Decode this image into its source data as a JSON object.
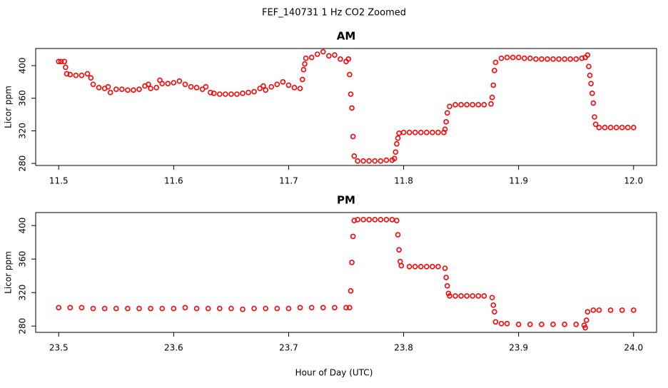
{
  "title": "FEF_140731  1 Hz CO2 Zoomed",
  "x_label": "Hour of Day (UTC)",
  "chart_data": [
    {
      "type": "scatter",
      "title": "AM",
      "y_label": "Licor ppm",
      "color": "#ff0000",
      "xlim": [
        11.48,
        12.02
      ],
      "xticks": [
        11.5,
        11.6,
        11.7,
        11.8,
        11.9,
        {
          "value": 12,
          "label": "12.0"
        }
      ],
      "ylim": [
        277.5,
        421
      ],
      "yticks": [
        280,
        320,
        360,
        400
      ],
      "x": [
        11.5,
        11.502,
        11.505,
        11.506,
        11.507,
        11.51,
        11.515,
        11.52,
        11.525,
        11.528,
        11.53,
        11.535,
        11.54,
        11.543,
        11.545,
        11.55,
        11.555,
        11.56,
        11.565,
        11.57,
        11.575,
        11.578,
        11.58,
        11.585,
        11.588,
        11.59,
        11.595,
        11.6,
        11.605,
        11.61,
        11.615,
        11.62,
        11.625,
        11.628,
        11.632,
        11.635,
        11.64,
        11.645,
        11.65,
        11.655,
        11.66,
        11.665,
        11.67,
        11.675,
        11.678,
        11.68,
        11.685,
        11.69,
        11.695,
        11.7,
        11.705,
        11.71,
        11.712,
        11.713,
        11.714,
        11.715,
        11.72,
        11.725,
        11.73,
        11.735,
        11.74,
        11.745,
        11.75,
        11.752,
        11.753,
        11.754,
        11.755,
        11.756,
        11.757,
        11.76,
        11.765,
        11.77,
        11.775,
        11.78,
        11.785,
        11.79,
        11.792,
        11.793,
        11.794,
        11.795,
        11.796,
        11.8,
        11.805,
        11.81,
        11.815,
        11.82,
        11.825,
        11.83,
        11.835,
        11.836,
        11.837,
        11.838,
        11.84,
        11.845,
        11.85,
        11.855,
        11.86,
        11.865,
        11.87,
        11.876,
        11.877,
        11.878,
        11.879,
        11.88,
        11.885,
        11.89,
        11.895,
        11.9,
        11.905,
        11.91,
        11.915,
        11.92,
        11.925,
        11.93,
        11.935,
        11.94,
        11.945,
        11.95,
        11.955,
        11.958,
        11.96,
        11.961,
        11.962,
        11.963,
        11.964,
        11.965,
        11.966,
        11.967,
        11.97,
        11.975,
        11.98,
        11.985,
        11.99,
        11.995,
        12.0
      ],
      "values": [
        405,
        405,
        405,
        398,
        390,
        389,
        388,
        388,
        390,
        385,
        377,
        373,
        372,
        374,
        367,
        371,
        371,
        370,
        370,
        371,
        375,
        377,
        372,
        373,
        382,
        378,
        378,
        379,
        381,
        377,
        374,
        373,
        371,
        374,
        367,
        366,
        365,
        365,
        365,
        365,
        366,
        367,
        368,
        372,
        375,
        370,
        374,
        377,
        380,
        376,
        373,
        372,
        383,
        395,
        402,
        409,
        410,
        414,
        417,
        412,
        413,
        408,
        405,
        408,
        389,
        365,
        348,
        313,
        289,
        283,
        283,
        283,
        283,
        283,
        284,
        284,
        286,
        294,
        304,
        311,
        317,
        318,
        318,
        318,
        318,
        318,
        318,
        318,
        318,
        322,
        331,
        342,
        350,
        352,
        352,
        352,
        352,
        352,
        352,
        353,
        361,
        376,
        394,
        404,
        409,
        410,
        410,
        410,
        409,
        409,
        408,
        408,
        408,
        408,
        408,
        408,
        408,
        408,
        409,
        410,
        413,
        399,
        388,
        378,
        366,
        354,
        337,
        328,
        324,
        324,
        324,
        324,
        324,
        324,
        324
      ]
    },
    {
      "type": "scatter",
      "title": "PM",
      "y_label": "Licor ppm",
      "color": "#ff0000",
      "xlim": [
        23.48,
        24.02
      ],
      "xticks": [
        23.5,
        23.6,
        23.7,
        23.8,
        23.9,
        {
          "value": 24,
          "label": "24.0"
        }
      ],
      "ylim": [
        272.5,
        415.5
      ],
      "yticks": [
        280,
        320,
        360,
        400
      ],
      "x": [
        23.5,
        23.51,
        23.52,
        23.53,
        23.54,
        23.55,
        23.56,
        23.57,
        23.58,
        23.59,
        23.6,
        23.61,
        23.62,
        23.63,
        23.64,
        23.65,
        23.66,
        23.67,
        23.68,
        23.69,
        23.7,
        23.71,
        23.72,
        23.73,
        23.74,
        23.75,
        23.753,
        23.754,
        23.755,
        23.756,
        23.757,
        23.76,
        23.765,
        23.77,
        23.775,
        23.78,
        23.785,
        23.79,
        23.794,
        23.795,
        23.796,
        23.797,
        23.798,
        23.805,
        23.81,
        23.815,
        23.82,
        23.825,
        23.83,
        23.836,
        23.837,
        23.838,
        23.839,
        23.84,
        23.845,
        23.85,
        23.855,
        23.86,
        23.865,
        23.87,
        23.877,
        23.878,
        23.879,
        23.88,
        23.885,
        23.89,
        23.9,
        23.91,
        23.92,
        23.93,
        23.94,
        23.95,
        23.957,
        23.958,
        23.959,
        23.96,
        23.965,
        23.97,
        23.98,
        23.99,
        24.0
      ],
      "values": [
        302,
        302,
        302,
        301,
        301,
        301,
        301,
        301,
        301,
        301,
        301,
        302,
        301,
        301,
        301,
        301,
        300,
        301,
        301,
        301,
        301,
        302,
        302,
        302,
        302,
        302,
        302,
        322,
        356,
        387,
        406,
        407,
        407,
        407,
        407,
        407,
        407,
        407,
        406,
        389,
        371,
        357,
        352,
        351,
        351,
        351,
        351,
        351,
        351,
        349,
        338,
        328,
        319,
        316,
        316,
        316,
        316,
        316,
        316,
        316,
        314,
        305,
        297,
        285,
        283,
        283,
        282,
        282,
        282,
        282,
        282,
        282,
        281,
        278,
        287,
        297,
        299,
        299,
        299,
        299,
        299
      ]
    }
  ]
}
